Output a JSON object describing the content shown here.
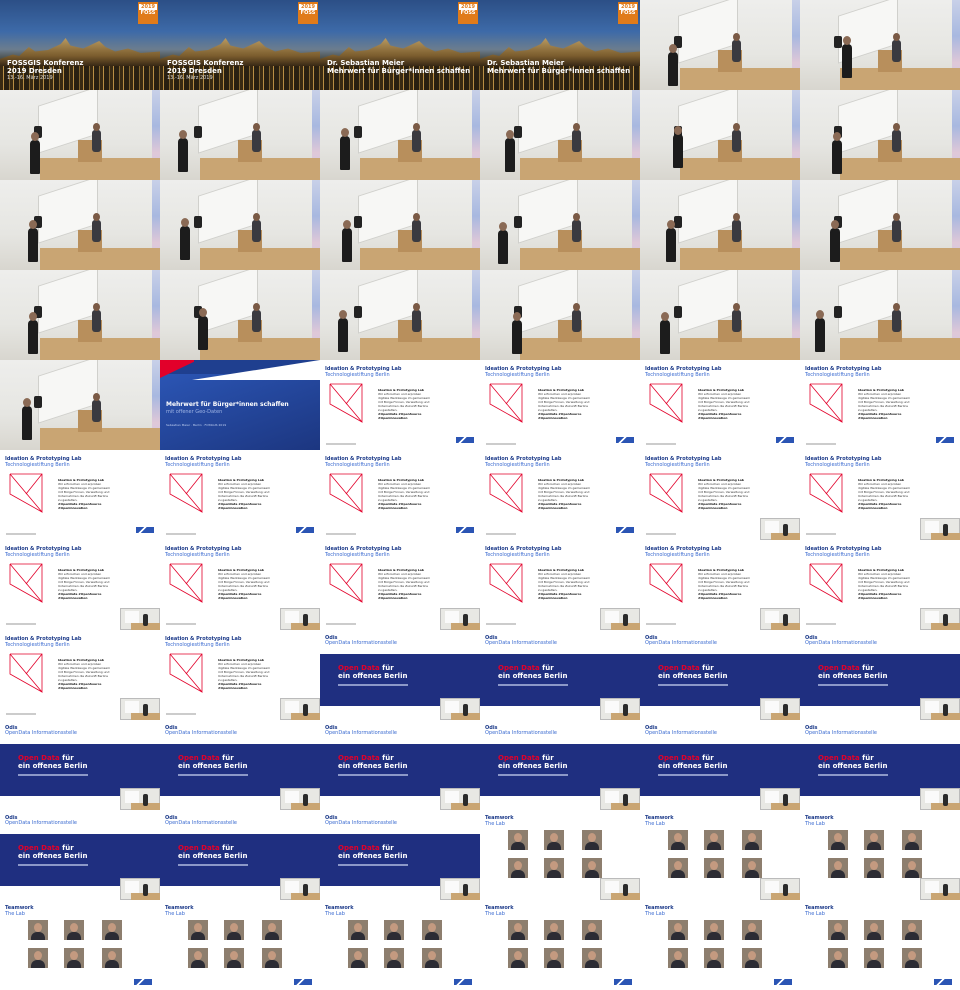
{
  "title_slides": [
    {
      "line1": "FOSSGIS Konferenz",
      "line2": "2019 Dresden",
      "line3": "13.-16. März 2019",
      "badge_year": "2019",
      "badge_text": "FOSS"
    },
    {
      "line1": "FOSSGIS Konferenz",
      "line2": "2019 Dresden",
      "line3": "13.-16. März 2019",
      "badge_year": "2019",
      "badge_text": "FOSS"
    },
    {
      "line1": "Dr. Sebastian Meier",
      "line2": "Mehrwert für Bürger*innen schaffen",
      "line3": "",
      "badge_year": "2019",
      "badge_text": "FOSS"
    },
    {
      "line1": "Dr. Sebastian Meier",
      "line2": "Mehrwert für Bürger*innen schaffen",
      "line3": "",
      "badge_year": "2019",
      "badge_text": "FOSS"
    }
  ],
  "mehrwert_slide": {
    "heading": "Mehrwert für Bürger*innen schaffen",
    "subheading": "mit offener Geo-Daten",
    "byline": "Sebastian Meier · Berlin · FOSSGIS 2019"
  },
  "lab_slide": {
    "heading": "Ideation & Prototyping Lab",
    "subheading": "Technologiestiftung Berlin",
    "box_title": "Ideation & Prototyping Lab",
    "body": [
      "Wir erforschen und erproben",
      "digitale Werkzeuge im gemeinsam",
      "mit Bürger*innen, Verwaltung und",
      "Unternehmen die Zukunft Berlins",
      "zu gestalten."
    ],
    "tags": [
      "#OpenData #OpenSource",
      "#OpenInnovation"
    ]
  },
  "odis_slide": {
    "heading": "Odis",
    "subheading": "OpenData Informationsstelle",
    "quote_red": "Open Data",
    "quote_white": "für",
    "quote_line2": "ein offenes Berlin"
  },
  "team_slide": {
    "heading": "Teamwork",
    "subheading": "The Lab"
  },
  "colors": {
    "brand_blue": "#1d3b8a",
    "accent_blue": "#3a6ad0",
    "odis_band": "#1f2f80",
    "red": "#e2002a",
    "badge_orange": "#e07b1a"
  }
}
